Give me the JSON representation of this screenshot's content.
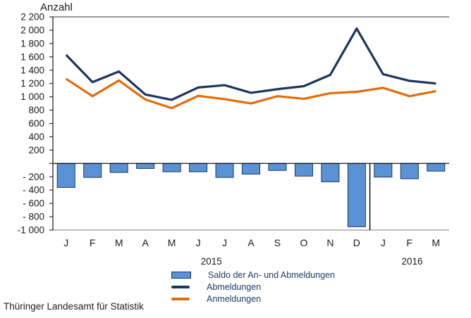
{
  "title": "Anzahl",
  "source": "Thüringer Landesamt für Statistik",
  "colors": {
    "bar_fill": "#5b92d5",
    "bar_border": "#17375e",
    "abmeldungen_line": "#1c355e",
    "anmeldungen_line": "#e36c0a",
    "axis": "#333333",
    "top_border": "#595959",
    "bottom_border": "#a6a6a6",
    "zero_line": "#000000",
    "separator": "#000000",
    "tick_text": "#1a1a1a"
  },
  "legend": [
    {
      "key": "saldo",
      "label": "Saldo der An- und Abmeldungen"
    },
    {
      "key": "abmeldungen",
      "label": "Abmeldungen"
    },
    {
      "key": "anmeldungen",
      "label": "Anmeldungen"
    }
  ],
  "chart_data": {
    "type": "bar+line combo",
    "title": "Anzahl",
    "xlabel": "",
    "ylabel": "Anzahl",
    "categories": [
      "J",
      "F",
      "M",
      "A",
      "M",
      "J",
      "J",
      "A",
      "S",
      "O",
      "N",
      "D",
      "J",
      "F",
      "M"
    ],
    "series": [
      {
        "key": "saldo",
        "name": "Saldo der An- und Abmeldungen",
        "type": "bar",
        "values": [
          -360,
          -210,
          -135,
          -75,
          -125,
          -125,
          -210,
          -160,
          -105,
          -190,
          -275,
          -950,
          -205,
          -230,
          -115
        ]
      },
      {
        "key": "abmeldungen",
        "name": "Abmeldungen",
        "type": "line",
        "values": [
          1630,
          1220,
          1380,
          1035,
          955,
          1140,
          1175,
          1060,
          1115,
          1160,
          1330,
          2025,
          1340,
          1240,
          1200
        ]
      },
      {
        "key": "anmeldungen",
        "name": "Anmeldungen",
        "type": "line",
        "values": [
          1270,
          1010,
          1245,
          960,
          830,
          1015,
          965,
          900,
          1010,
          970,
          1055,
          1075,
          1135,
          1010,
          1085
        ]
      }
    ],
    "years": [
      {
        "label": "2015",
        "center_index": 5.5
      },
      {
        "label": "2016",
        "center_index": 13.1
      }
    ],
    "year_separator_after_band": 12,
    "ylim": [
      -1000,
      2200
    ],
    "ytick_step": 200,
    "ytick_labels": [
      "2 200",
      "2 000",
      "1 800",
      "1 600",
      "1 400",
      "1 200",
      "1 000",
      "800",
      "600",
      "400",
      "200",
      "",
      "- 200",
      "- 400",
      "- 600",
      "- 800",
      "-1 000"
    ],
    "grid": "none",
    "legend_position": "bottom"
  }
}
